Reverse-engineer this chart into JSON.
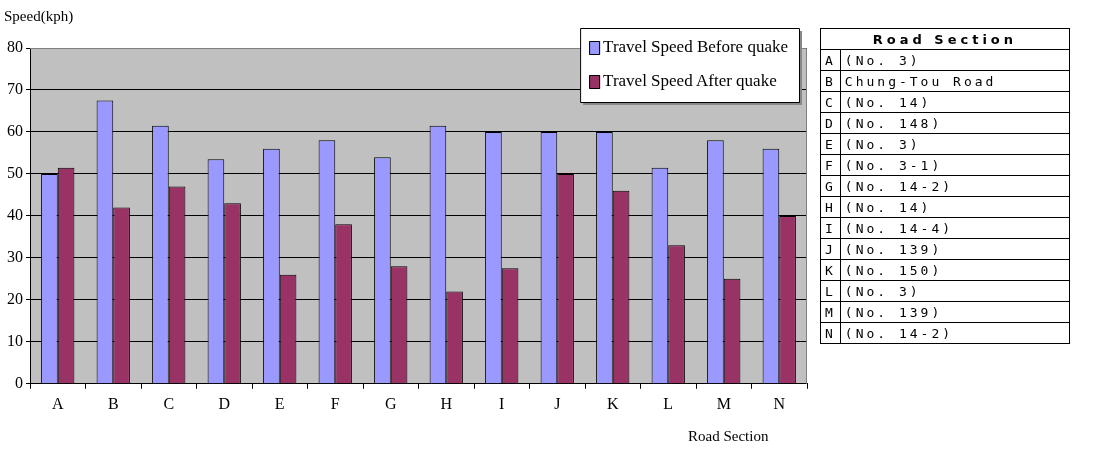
{
  "chart_data": [
    {
      "type": "bar",
      "ylabel": "Speed(kph)",
      "xlabel": "Road Section",
      "categories": [
        "A",
        "B",
        "C",
        "D",
        "E",
        "F",
        "G",
        "H",
        "I",
        "J",
        "K",
        "L",
        "M",
        "N"
      ],
      "series": [
        {
          "name": "Travel Speed Before quake",
          "color": "#9999ff",
          "values": [
            50,
            67.5,
            61.5,
            53.5,
            56,
            58,
            54,
            61.5,
            60,
            60,
            60,
            51.5,
            58,
            56
          ]
        },
        {
          "name": "Travel Speed After quake",
          "color": "#993366",
          "values": [
            51.5,
            42,
            47,
            43,
            26,
            38,
            28,
            22,
            27.5,
            50,
            46,
            33,
            25,
            40
          ]
        }
      ],
      "ylim": [
        0,
        80
      ],
      "yticks": [
        0,
        10,
        20,
        30,
        40,
        50,
        60,
        70,
        80
      ],
      "grid": "y",
      "legend": "top right"
    },
    {
      "type": "other",
      "title": "Road Section",
      "categories": [
        "A",
        "B",
        "C",
        "D",
        "E",
        "F",
        "G",
        "H",
        "I",
        "J",
        "K",
        "L",
        "M",
        "N"
      ],
      "annotations": [
        "(No. 3)",
        "Chung-Tou Road",
        "(No. 14)",
        "(No. 148)",
        "(No. 3)",
        "(No. 3-1)",
        "(No. 14-2)",
        "(No. 14)",
        "(No. 14-4)",
        "(No. 139)",
        "(No. 150)",
        "(No. 3)",
        "(No. 139)",
        "(No. 14-2)"
      ]
    }
  ]
}
